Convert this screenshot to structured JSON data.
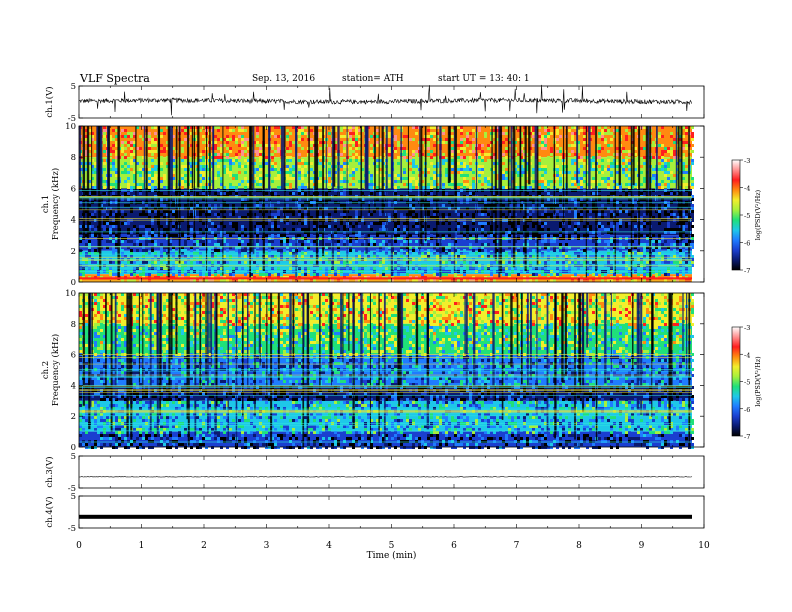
{
  "header": {
    "title": "VLF  Spectra",
    "date": "Sep. 13, 2016",
    "station": "station= ATH",
    "start": "start  UT  =    13: 40: 1"
  },
  "colorbar": {
    "label": "log(PSD(V²/Hz)",
    "ticks": [
      "-3",
      "-4",
      "-5",
      "-6",
      "-7"
    ],
    "colors": [
      "#000000",
      "#0a1a70",
      "#1a3fd0",
      "#1f7cff",
      "#1ec8e8",
      "#20e07a",
      "#a6f03c",
      "#f2ee2c",
      "#ff8a10",
      "#ff1e1e",
      "#ff9090",
      "#ffffff"
    ]
  },
  "chart_data": [
    {
      "type": "line",
      "name": "ch1-waveform",
      "ylabel": "ch.1(V)",
      "ylim": [
        -5,
        5
      ],
      "yticks": [
        "5",
        "-5"
      ],
      "xlim": [
        0,
        10
      ],
      "approx_level": 0,
      "description_values": {
        "baseline_v": 0.3,
        "noise_amplitude_v": 1.2,
        "spike_amplitude_v": 4.0
      }
    },
    {
      "type": "heatmap",
      "name": "ch1-spectrogram",
      "ylabel": "ch.1\nFrequency  (kHz)",
      "ylim": [
        0,
        10
      ],
      "yticks": [
        "10",
        "8",
        "6",
        "4",
        "2",
        "0"
      ],
      "xlim": [
        0,
        9.8
      ],
      "colorbar_range": [
        -7,
        -3
      ],
      "bands_khz": [
        {
          "from": 8.0,
          "to": 10.0,
          "level": -4.3
        },
        {
          "from": 6.0,
          "to": 8.0,
          "level": -5.0
        },
        {
          "from": 3.0,
          "to": 6.0,
          "level": -6.6
        },
        {
          "from": 2.0,
          "to": 3.0,
          "level": -6.1
        },
        {
          "from": 0.5,
          "to": 2.0,
          "level": -5.6
        },
        {
          "from": 0.0,
          "to": 0.5,
          "level": -4.2
        }
      ]
    },
    {
      "type": "heatmap",
      "name": "ch2-spectrogram",
      "ylabel": "ch.2\nFrequency  (kHz)",
      "ylim": [
        0,
        10
      ],
      "yticks": [
        "10",
        "8",
        "6",
        "4",
        "2",
        "0"
      ],
      "xlim": [
        0,
        9.8
      ],
      "colorbar_range": [
        -7,
        -3
      ],
      "bands_khz": [
        {
          "from": 8.0,
          "to": 10.0,
          "level": -4.6
        },
        {
          "from": 6.0,
          "to": 8.0,
          "level": -5.1
        },
        {
          "from": 4.0,
          "to": 6.0,
          "level": -5.8
        },
        {
          "from": 3.0,
          "to": 4.0,
          "level": -6.5
        },
        {
          "from": 1.0,
          "to": 3.0,
          "level": -5.6
        },
        {
          "from": 0.0,
          "to": 1.0,
          "level": -6.3
        }
      ]
    },
    {
      "type": "line",
      "name": "ch3-waveform",
      "ylabel": "ch.3(V)",
      "ylim": [
        -5,
        5
      ],
      "yticks": [
        "5",
        "-5"
      ],
      "xlim": [
        0,
        9.8
      ],
      "approx_level": -1.5
    },
    {
      "type": "line",
      "name": "ch4-waveform",
      "ylabel": "ch.4(V)",
      "ylim": [
        -5,
        5
      ],
      "yticks": [
        "5",
        "-5"
      ],
      "xlim": [
        0,
        9.8
      ],
      "approx_level": -1.5
    }
  ],
  "xaxis": {
    "label": "Time  (min)",
    "ticks": [
      "0",
      "1",
      "2",
      "3",
      "4",
      "5",
      "6",
      "7",
      "8",
      "9",
      "10"
    ]
  }
}
